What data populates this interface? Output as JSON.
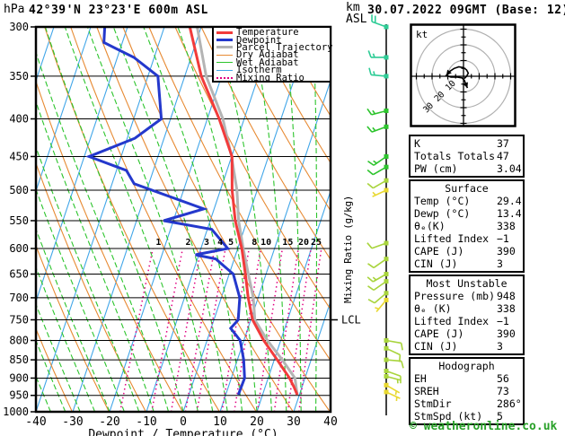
{
  "header": {
    "pressure_unit": "hPa",
    "title": "42°39'N 23°23'E 600m ASL",
    "altitude_unit": "km\nASL",
    "datetime": "30.07.2022 09GMT (Base: 12)"
  },
  "axes": {
    "xlabel": "Dewpoint / Temperature (°C)",
    "x_ticks": [
      -40,
      -30,
      -20,
      -10,
      0,
      10,
      20,
      30,
      40
    ],
    "pressure_ticks": [
      300,
      350,
      400,
      450,
      500,
      550,
      600,
      650,
      700,
      750,
      800,
      850,
      900,
      950,
      1000
    ],
    "mixing_axis_label": "Mixing Ratio (g/kg)",
    "lcl_label": "LCL"
  },
  "legend": [
    {
      "label": "Temperature",
      "color": "#f23b3b",
      "style": "solid",
      "weight": 3
    },
    {
      "label": "Dewpoint",
      "color": "#2438cc",
      "style": "solid",
      "weight": 3
    },
    {
      "label": "Parcel Trajectory",
      "color": "#b4b4b4",
      "style": "solid",
      "weight": 3
    },
    {
      "label": "Dry Adiabat",
      "color": "#e78a33",
      "style": "solid",
      "weight": 1
    },
    {
      "label": "Wet Adiabat",
      "color": "#2cc42c",
      "style": "solid",
      "weight": 1
    },
    {
      "label": "Isotherm",
      "color": "#41a6e8",
      "style": "solid",
      "weight": 1
    },
    {
      "label": "Mixing Ratio",
      "color": "#e00080",
      "style": "dotted",
      "weight": 2
    }
  ],
  "chart_data": {
    "type": "skewt-log-p",
    "pressure_range": [
      300,
      1000
    ],
    "temperature_range": [
      -40,
      40
    ],
    "grid": {
      "isobar_step": 50,
      "isotherm_step": 10,
      "dry_adiabat_step_K": 10,
      "wet_adiabat_step_C": 4
    },
    "temperature_profile": [
      [
        948,
        29.4
      ],
      [
        925,
        27.8
      ],
      [
        900,
        25.8
      ],
      [
        850,
        20.8
      ],
      [
        800,
        15.4
      ],
      [
        750,
        10.5
      ],
      [
        700,
        7.3
      ],
      [
        650,
        4.4
      ],
      [
        600,
        1.1
      ],
      [
        550,
        -3.2
      ],
      [
        500,
        -6.8
      ],
      [
        450,
        -9.9
      ],
      [
        400,
        -16.8
      ],
      [
        350,
        -25.5
      ],
      [
        300,
        -33.1
      ]
    ],
    "dewpoint_profile": [
      [
        948,
        13.4
      ],
      [
        900,
        13.6
      ],
      [
        850,
        11.7
      ],
      [
        800,
        9.0
      ],
      [
        770,
        5.3
      ],
      [
        750,
        6.6
      ],
      [
        700,
        5.0
      ],
      [
        650,
        1.1
      ],
      [
        620,
        -5.0
      ],
      [
        612,
        -10.9
      ],
      [
        600,
        -2.7
      ],
      [
        565,
        -8.8
      ],
      [
        550,
        -22.6
      ],
      [
        530,
        -12.8
      ],
      [
        490,
        -34.0
      ],
      [
        470,
        -37.3
      ],
      [
        450,
        -48.7
      ],
      [
        425,
        -37.9
      ],
      [
        400,
        -32.5
      ],
      [
        350,
        -37.3
      ],
      [
        330,
        -45.5
      ],
      [
        315,
        -55.0
      ],
      [
        300,
        -56.2
      ]
    ],
    "parcel_profile": [
      [
        948,
        29.4
      ],
      [
        900,
        27.3
      ],
      [
        850,
        22.2
      ],
      [
        800,
        16.4
      ],
      [
        750,
        11.1
      ],
      [
        700,
        8.7
      ],
      [
        650,
        5.2
      ],
      [
        600,
        1.5
      ],
      [
        550,
        -2.3
      ],
      [
        500,
        -5.5
      ],
      [
        450,
        -10.0
      ],
      [
        400,
        -15.8
      ],
      [
        350,
        -24.2
      ],
      [
        300,
        -31.1
      ]
    ],
    "lcl_pressure": 750,
    "mixing_ratio_lines": [
      1,
      2,
      3,
      4,
      5,
      8,
      10,
      15,
      20,
      25
    ],
    "wind_barbs": [
      {
        "p": 300,
        "dir": 290,
        "spd": 20,
        "color": "#2ecc96"
      },
      {
        "p": 330,
        "dir": 270,
        "spd": 15,
        "color": "#2ecc96"
      },
      {
        "p": 350,
        "dir": 275,
        "spd": 15,
        "color": "#2ecc96"
      },
      {
        "p": 390,
        "dir": 255,
        "spd": 15,
        "color": "#2cc42c"
      },
      {
        "p": 410,
        "dir": 250,
        "spd": 15,
        "color": "#2cc42c"
      },
      {
        "p": 450,
        "dir": 235,
        "spd": 15,
        "color": "#2cc42c"
      },
      {
        "p": 465,
        "dir": 240,
        "spd": 10,
        "color": "#2cc42c"
      },
      {
        "p": 485,
        "dir": 240,
        "spd": 10,
        "color": "#a8d43c"
      },
      {
        "p": 500,
        "dir": 245,
        "spd": 5,
        "color": "#e8d830"
      },
      {
        "p": 590,
        "dir": 250,
        "spd": 10,
        "color": "#a8d43c"
      },
      {
        "p": 620,
        "dir": 235,
        "spd": 10,
        "color": "#a8d43c"
      },
      {
        "p": 650,
        "dir": 240,
        "spd": 15,
        "color": "#a8d43c"
      },
      {
        "p": 665,
        "dir": 235,
        "spd": 10,
        "color": "#a8d43c"
      },
      {
        "p": 690,
        "dir": 230,
        "spd": 10,
        "color": "#a8d43c"
      },
      {
        "p": 705,
        "dir": 220,
        "spd": 5,
        "color": "#e8d830"
      },
      {
        "p": 800,
        "dir": 100,
        "spd": 10,
        "color": "#a8d43c"
      },
      {
        "p": 820,
        "dir": 115,
        "spd": 10,
        "color": "#a8d43c"
      },
      {
        "p": 850,
        "dir": 95,
        "spd": 10,
        "color": "#a8d43c"
      },
      {
        "p": 880,
        "dir": 110,
        "spd": 10,
        "color": "#a8d43c"
      },
      {
        "p": 895,
        "dir": 105,
        "spd": 5,
        "color": "#a8d43c"
      },
      {
        "p": 920,
        "dir": 120,
        "spd": 5,
        "color": "#e8d830"
      },
      {
        "p": 940,
        "dir": 115,
        "spd": 5,
        "color": "#e8d830"
      }
    ]
  },
  "hodograph": {
    "unit_label": "kt",
    "rings": [
      10,
      20,
      30
    ],
    "tick_step": 5,
    "trace_kt": [
      [
        0.5,
        -1.5
      ],
      [
        2,
        0
      ],
      [
        3,
        2
      ],
      [
        2,
        4
      ],
      [
        0,
        5.5
      ],
      [
        -3,
        6
      ],
      [
        -6,
        5
      ],
      [
        -9,
        3
      ],
      [
        -11,
        0.5
      ],
      [
        -8,
        -0.5
      ],
      [
        -4,
        -0.5
      ],
      [
        -1,
        -1
      ],
      [
        0.5,
        -2.5
      ],
      [
        1.5,
        -5
      ],
      [
        2.5,
        -7.5
      ]
    ]
  },
  "tables": [
    {
      "header": null,
      "rows": [
        [
          "K",
          "37"
        ],
        [
          "Totals Totals",
          "47"
        ],
        [
          "PW (cm)",
          "3.04"
        ]
      ]
    },
    {
      "header": "Surface",
      "rows": [
        [
          "Temp (°C)",
          "29.4"
        ],
        [
          "Dewp (°C)",
          "13.4"
        ],
        [
          "θₑ(K)",
          "338"
        ],
        [
          "Lifted Index",
          "−1"
        ],
        [
          "CAPE (J)",
          "390"
        ],
        [
          "CIN (J)",
          "3"
        ]
      ]
    },
    {
      "header": "Most Unstable",
      "rows": [
        [
          "Pressure (mb)",
          "948"
        ],
        [
          "θₑ (K)",
          "338"
        ],
        [
          "Lifted Index",
          "−1"
        ],
        [
          "CAPE (J)",
          "390"
        ],
        [
          "CIN (J)",
          "3"
        ]
      ]
    },
    {
      "header": "Hodograph",
      "rows": [
        [
          "EH",
          "56"
        ],
        [
          "SREH",
          "73"
        ],
        [
          "StmDir",
          "286°"
        ],
        [
          "StmSpd (kt)",
          "5"
        ]
      ]
    }
  ],
  "footer": {
    "copyright": "© weatheronline.co.uk"
  }
}
